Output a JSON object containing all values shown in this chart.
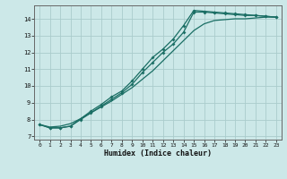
{
  "xlabel": "Humidex (Indice chaleur)",
  "background_color": "#cce8e8",
  "line_color": "#1a6e64",
  "grid_color": "#aacccc",
  "xlim": [
    -0.5,
    23.5
  ],
  "ylim": [
    6.8,
    14.8
  ],
  "yticks": [
    7,
    8,
    9,
    10,
    11,
    12,
    13,
    14
  ],
  "xticks": [
    0,
    1,
    2,
    3,
    4,
    5,
    6,
    7,
    8,
    9,
    10,
    11,
    12,
    13,
    14,
    15,
    16,
    17,
    18,
    19,
    20,
    21,
    22,
    23
  ],
  "line1_x": [
    0,
    1,
    2,
    3,
    4,
    5,
    6,
    7,
    8,
    9,
    10,
    11,
    12,
    13,
    14,
    15,
    16,
    17,
    18,
    19,
    20,
    21,
    22,
    23
  ],
  "line1_y": [
    7.7,
    7.5,
    7.5,
    7.6,
    8.0,
    8.4,
    8.8,
    9.2,
    9.6,
    10.1,
    10.8,
    11.4,
    12.0,
    12.5,
    13.2,
    14.4,
    14.4,
    14.35,
    14.3,
    14.25,
    14.2,
    14.2,
    14.15,
    14.1
  ],
  "line2_x": [
    0,
    1,
    2,
    3,
    4,
    5,
    6,
    7,
    8,
    9,
    10,
    11,
    12,
    13,
    14,
    15,
    16,
    17,
    18,
    19,
    20,
    21,
    22,
    23
  ],
  "line2_y": [
    7.7,
    7.5,
    7.5,
    7.6,
    8.05,
    8.5,
    8.9,
    9.35,
    9.7,
    10.3,
    11.0,
    11.7,
    12.2,
    12.8,
    13.6,
    14.5,
    14.45,
    14.4,
    14.35,
    14.3,
    14.25,
    14.2,
    14.15,
    14.1
  ],
  "line3_x": [
    0,
    1,
    2,
    3,
    4,
    5,
    6,
    7,
    8,
    9,
    10,
    11,
    12,
    13,
    14,
    15,
    16,
    17,
    18,
    19,
    20,
    21,
    22,
    23
  ],
  "line3_y": [
    7.7,
    7.55,
    7.6,
    7.75,
    8.05,
    8.4,
    8.75,
    9.1,
    9.5,
    9.9,
    10.4,
    10.9,
    11.5,
    12.1,
    12.7,
    13.3,
    13.7,
    13.9,
    13.95,
    14.0,
    14.0,
    14.05,
    14.1,
    14.1
  ]
}
